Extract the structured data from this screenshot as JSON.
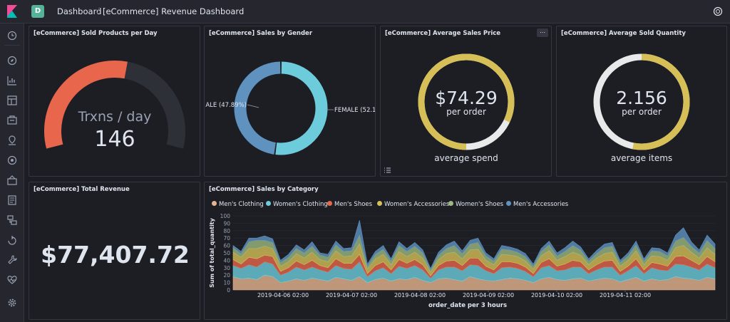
{
  "header": {
    "space_initial": "D",
    "breadcrumbs": [
      "Dashboard",
      "[eCommerce] Revenue Dashboard"
    ]
  },
  "panels": {
    "sold_per_day": {
      "title": "[eCommerce] Sold Products per Day",
      "label": "Trxns / day",
      "value": "146",
      "gauge_fraction": 0.55,
      "color": "#e7664c"
    },
    "gender": {
      "title": "[eCommerce] Sales by Gender",
      "left_label": "ALE (47.89%)",
      "right_label": "FEMALE (52.1",
      "male_pct": 47.89,
      "female_pct": 52.11,
      "male_color": "#6092c0",
      "female_color": "#6dccdc"
    },
    "avg_price": {
      "title": "[eCommerce] Average Sales Price",
      "value": "$74.29",
      "unit": "per order",
      "caption": "average spend",
      "fraction": 0.82,
      "color": "#d6bf57",
      "options": "⋯"
    },
    "avg_qty": {
      "title": "[eCommerce] Average Sold Quantity",
      "value": "2.156",
      "unit": "per order",
      "caption": "average items",
      "fraction": 0.53,
      "color": "#d6bf57"
    },
    "total_revenue": {
      "title": "[eCommerce] Total Revenue",
      "value": "$77,407.72"
    },
    "category": {
      "title": "[eCommerce] Sales by Category"
    }
  },
  "chart_data": {
    "type": "area",
    "stacked": true,
    "xlabel": "order_date per 3 hours",
    "ylabel": "Sum of total_quantity",
    "ylim": [
      0,
      100
    ],
    "yticks": [
      0,
      10,
      20,
      30,
      40,
      50,
      60,
      70,
      80,
      90,
      100
    ],
    "xtick_labels": [
      "2019-04-06 02:00",
      "2019-04-07 02:00",
      "2019-04-08 02:00",
      "2019-04-09 02:00",
      "2019-04-10 02:00",
      "2019-04-11 02:00"
    ],
    "series": [
      {
        "name": "Men's Clothing",
        "color": "#e7b48f",
        "values": [
          18,
          15,
          16,
          14,
          20,
          18,
          10,
          12,
          15,
          13,
          16,
          14,
          12,
          17,
          15,
          13,
          18,
          10,
          14,
          16,
          12,
          15,
          14,
          17,
          13,
          10,
          15,
          16,
          14,
          12,
          18,
          15,
          13,
          12,
          14,
          16,
          15,
          13,
          10,
          15,
          17,
          14,
          13,
          15,
          16,
          12,
          14,
          16,
          15,
          11,
          14,
          17,
          12,
          15,
          13,
          14,
          18,
          16,
          15,
          13,
          17,
          15
        ]
      },
      {
        "name": "Women's Clothing",
        "color": "#6dccdc",
        "values": [
          15,
          14,
          18,
          17,
          18,
          17,
          10,
          12,
          16,
          14,
          15,
          13,
          12,
          16,
          14,
          15,
          20,
          8,
          12,
          14,
          10,
          17,
          15,
          16,
          14,
          6,
          12,
          15,
          17,
          14,
          16,
          18,
          13,
          10,
          16,
          15,
          14,
          12,
          8,
          15,
          16,
          12,
          14,
          16,
          15,
          10,
          13,
          15,
          16,
          9,
          12,
          16,
          10,
          15,
          14,
          12,
          17,
          18,
          16,
          14,
          18,
          15
        ]
      },
      {
        "name": "Men's Shoes",
        "color": "#e7664c",
        "values": [
          8,
          6,
          10,
          11,
          9,
          10,
          5,
          6,
          8,
          7,
          9,
          6,
          6,
          9,
          7,
          8,
          10,
          4,
          7,
          8,
          5,
          9,
          7,
          8,
          7,
          3,
          6,
          8,
          9,
          7,
          9,
          10,
          6,
          5,
          8,
          7,
          7,
          6,
          4,
          7,
          9,
          6,
          8,
          9,
          7,
          5,
          7,
          8,
          9,
          5,
          6,
          9,
          5,
          7,
          8,
          6,
          10,
          12,
          9,
          7,
          10,
          8
        ]
      },
      {
        "name": "Women's Accessories",
        "color": "#d6bf57",
        "values": [
          10,
          9,
          12,
          14,
          12,
          11,
          7,
          8,
          10,
          9,
          11,
          8,
          8,
          11,
          9,
          10,
          14,
          6,
          9,
          10,
          7,
          11,
          9,
          10,
          9,
          5,
          8,
          10,
          11,
          9,
          11,
          12,
          8,
          7,
          10,
          9,
          9,
          8,
          6,
          9,
          11,
          8,
          10,
          11,
          9,
          7,
          9,
          10,
          11,
          7,
          8,
          11,
          7,
          9,
          10,
          8,
          12,
          14,
          11,
          9,
          12,
          10
        ]
      },
      {
        "name": "Women's Shoes",
        "color": "#9eb97f",
        "values": [
          6,
          5,
          9,
          11,
          8,
          8,
          5,
          6,
          7,
          7,
          8,
          6,
          6,
          8,
          7,
          7,
          12,
          4,
          6,
          7,
          5,
          8,
          7,
          8,
          7,
          3,
          6,
          7,
          9,
          7,
          8,
          9,
          6,
          5,
          7,
          7,
          6,
          6,
          4,
          6,
          8,
          6,
          7,
          9,
          7,
          5,
          6,
          8,
          8,
          5,
          6,
          8,
          5,
          7,
          7,
          6,
          9,
          11,
          8,
          7,
          10,
          8
        ]
      },
      {
        "name": "Men's Accessories",
        "color": "#6092c0",
        "values": [
          3,
          3,
          5,
          3,
          6,
          5,
          3,
          4,
          5,
          4,
          6,
          3,
          4,
          5,
          4,
          4,
          20,
          3,
          4,
          5,
          3,
          5,
          4,
          5,
          4,
          2,
          4,
          5,
          6,
          4,
          5,
          6,
          4,
          3,
          5,
          4,
          4,
          4,
          3,
          4,
          5,
          4,
          5,
          6,
          4,
          3,
          4,
          5,
          5,
          3,
          4,
          5,
          3,
          4,
          4,
          4,
          8,
          13,
          6,
          4,
          7,
          6
        ]
      }
    ]
  }
}
